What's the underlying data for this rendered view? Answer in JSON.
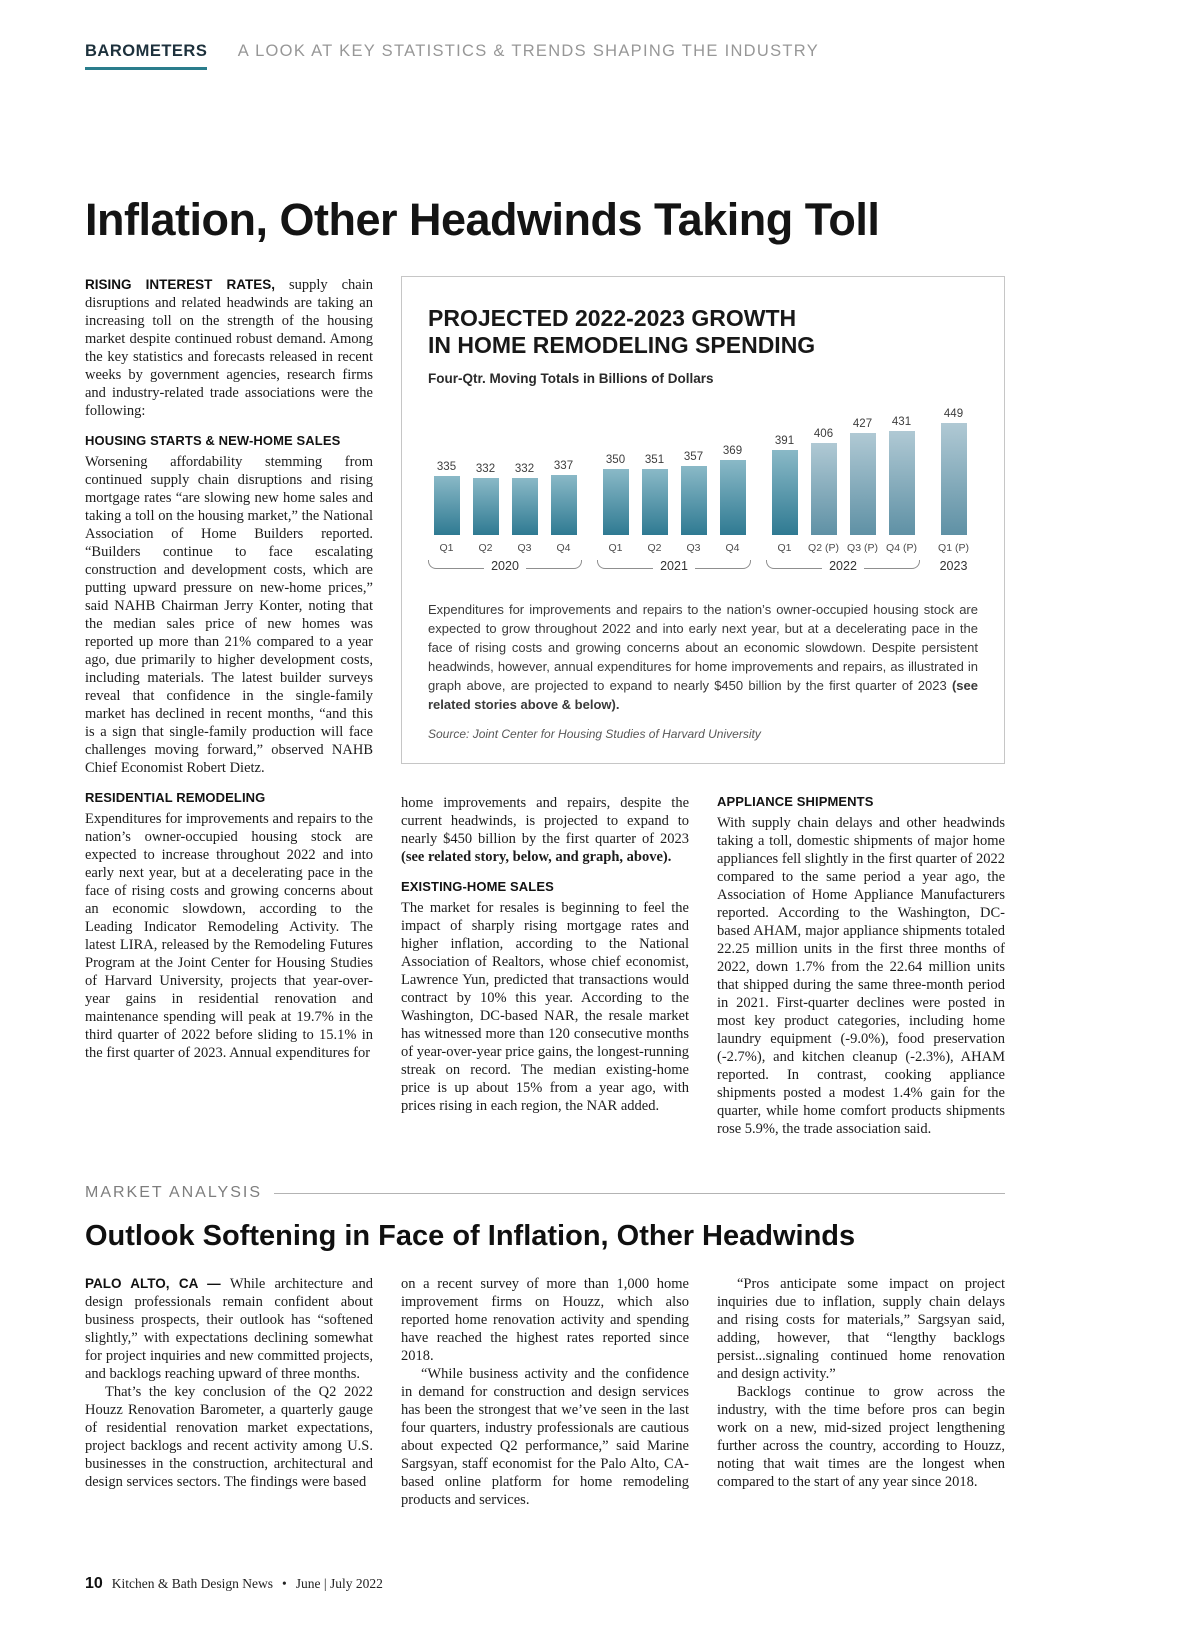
{
  "header": {
    "kicker": "BAROMETERS",
    "tagline": "A LOOK AT KEY STATISTICS & TRENDS SHAPING THE INDUSTRY"
  },
  "article1": {
    "title": "Inflation, Other Headwinds Taking Toll",
    "left_col": {
      "intro": [
        {
          "t": "RISING INTEREST RATES,",
          "lead": true
        },
        {
          "t": " supply chain disruptions and related headwinds are taking an increasing toll on the strength of the housing market despite continued robust demand. Among the key statistics and forecasts released in recent weeks by government agencies, research firms and industry-related trade associations were the following:"
        }
      ],
      "section1_heading": "HOUSING STARTS & NEW-HOME SALES",
      "section1_para": [
        {
          "t": "Worsening affordability stemming from continued supply chain disruptions and rising mortgage rates “are slowing new home sales and taking a toll on the housing market,” the National Association of Home Builders reported. “Builders continue to face escalating construction and development costs, which are putting upward pressure on new-home prices,” said NAHB Chairman Jerry Konter, noting that the median sales price of new homes was reported up more than 21% compared to a year ago, due primarily to higher development costs, including materials. The latest builder surveys reveal that confidence in the single-family market has declined in recent months, “and this is a sign that single-family production will face challenges moving forward,” observed NAHB Chief Economist Robert Dietz."
        }
      ],
      "section2_heading": "RESIDENTIAL REMODELING",
      "section2_para": [
        {
          "t": "Expenditures for improvements and repairs to the nation’s owner-occupied housing stock are expected to increase throughout 2022 and into early next year, but at a decelerating pace in the face of rising costs and growing concerns about an economic slowdown, according to the Leading Indicator Remodeling Activity. The latest LIRA, released by the Remodeling Futures Program at the Joint Center for Housing Studies of Harvard University, projects that year-over-year gains in residential renovation and maintenance spending will peak at 19.7% in the third quarter of 2022 before sliding to 15.1% in the first quarter of 2023. Annual expenditures for"
        }
      ]
    },
    "mid_col": {
      "continuation": [
        {
          "t": "home improvements and repairs, despite the current headwinds, is projected to expand to nearly $450 billion by the first quarter of 2023 "
        },
        {
          "t": "(see related story, below, and graph, above).",
          "b": true
        }
      ],
      "section_heading": "EXISTING-HOME SALES",
      "section_para": [
        {
          "t": "The market for resales is beginning to feel the impact of sharply rising mortgage rates and higher inflation, according to the National Association of Realtors, whose chief economist, Lawrence Yun, predicted that transactions would contract by 10% this year. According to the Washington, DC-based NAR, the resale market has witnessed more than 120 consecutive months of year-over-year price gains, the longest-running streak on record. The median existing-home price is up about 15% from a year ago, with prices rising in each region, the NAR added."
        }
      ]
    },
    "right_col": {
      "section_heading": "APPLIANCE SHIPMENTS",
      "section_para": [
        {
          "t": "With supply chain delays and other headwinds taking a toll, domestic shipments of major home appliances fell slightly in the first quarter of 2022 compared to the same period a year ago, the Association of Home Appliance Manufacturers reported. According to the Washington, DC-based AHAM, major appliance shipments totaled 22.25 million units in the first three months of 2022, down 1.7% from the 22.64 million units that shipped during the same three-month period in 2021. First-quarter declines were posted in most key product categories, including home laundry equipment (-9.0%), food preservation (-2.7%), and kitchen cleanup (-2.3%), AHAM reported. In contrast, cooking appliance shipments posted a modest 1.4% gain for the quarter, while home comfort products shipments rose 5.9%, the trade association said."
        }
      ]
    }
  },
  "chart_box": {
    "title_line1": "PROJECTED 2022-2023 GROWTH",
    "title_line2": "IN HOME REMODELING SPENDING",
    "subtitle": "Four-Qtr. Moving Totals in Billions of Dollars",
    "caption": [
      {
        "t": "Expenditures for improvements and repairs to the nation’s owner-occupied housing stock are expected to grow throughout 2022 and into early next year, but at a decelerating pace in the face of rising costs and growing concerns about an economic slowdown. Despite persistent headwinds, however, annual expenditures for home improvements and repairs, as illustrated in graph above, are projected to expand to nearly $450 billion by the first quarter of 2023 "
      },
      {
        "t": "(see related stories above & below).",
        "b": true
      }
    ],
    "source": "Source: Joint Center for Housing Studies of Harvard University"
  },
  "chart_data": {
    "type": "bar",
    "title": "Projected 2022-2023 Growth in Home Remodeling Spending",
    "subtitle": "Four-Qtr. Moving Totals in Billions of Dollars",
    "unit": "billions of dollars",
    "categories": [
      "Q1",
      "Q2",
      "Q3",
      "Q4",
      "Q1",
      "Q2",
      "Q3",
      "Q4",
      "Q1",
      "Q2 (P)",
      "Q3 (P)",
      "Q4 (P)",
      "Q1 (P)"
    ],
    "values": [
      335,
      332,
      332,
      337,
      350,
      351,
      357,
      369,
      391,
      406,
      427,
      431,
      449
    ],
    "projected": [
      false,
      false,
      false,
      false,
      false,
      false,
      false,
      false,
      false,
      true,
      true,
      true,
      true
    ],
    "groups": [
      {
        "label": "2020",
        "count": 4
      },
      {
        "label": "2021",
        "count": 4
      },
      {
        "label": "2022",
        "count": 4
      },
      {
        "label": "2023",
        "count": 1
      }
    ],
    "ylim": [
      300,
      460
    ],
    "grid": false,
    "legend": false,
    "source": "Joint Center for Housing Studies of Harvard University",
    "colors": {
      "bar_top": "#8ab9c7",
      "bar_bottom": "#2f7a92",
      "projected_top": "#b0c9d4",
      "projected_bottom": "#5f91a5"
    }
  },
  "market_analysis_label": "MARKET ANALYSIS",
  "article2": {
    "title": "Outlook Softening in Face of Inflation, Other Headwinds",
    "cols": [
      {
        "paras": [
          {
            "segs": [
              {
                "t": "PALO ALTO, CA — ",
                "lead": true
              },
              {
                "t": "While architecture and design professionals remain confident about business prospects, their outlook has “softened slightly,” with expectations declining somewhat for project inquiries and new committed projects, and backlogs reaching upward of three months."
              }
            ]
          },
          {
            "indent": true,
            "segs": [
              {
                "t": "That’s the key conclusion of the Q2 2022 Houzz Renovation Barometer, a quarterly gauge of residential renovation market expectations, project backlogs and recent activity among U.S. businesses in the construction, architectural and design services sectors. The findings were based"
              }
            ]
          }
        ]
      },
      {
        "paras": [
          {
            "segs": [
              {
                "t": "on a recent survey of more than 1,000 home improvement firms on Houzz, which also reported home renovation activity and spending have reached the highest rates reported since 2018."
              }
            ]
          },
          {
            "indent": true,
            "segs": [
              {
                "t": "“While business activity and the confidence in demand for construction and design services has been the strongest that we’ve seen in the last four quarters, industry professionals are cautious about expected Q2 performance,” said Marine Sargsyan, staff economist for the Palo Alto, CA-based online platform for home remodeling products and services."
              }
            ]
          }
        ]
      },
      {
        "paras": [
          {
            "indent": true,
            "segs": [
              {
                "t": "“Pros anticipate some impact on project inquiries due to inflation, supply chain delays and rising costs for materials,” Sargsyan said, adding, however, that “lengthy backlogs persist...signaling continued home renovation and design activity.”"
              }
            ]
          },
          {
            "indent": true,
            "segs": [
              {
                "t": "Backlogs continue to grow across the industry, with the time before pros can begin work on a new, mid-sized project lengthening further across the country, according to Houzz, noting that wait times are the longest when compared to the start of any year since 2018."
              }
            ]
          }
        ]
      }
    ]
  },
  "footer": {
    "page_number": "10",
    "magazine": "Kitchen & Bath Design News",
    "separator": "•",
    "issue": "June | July 2022"
  }
}
